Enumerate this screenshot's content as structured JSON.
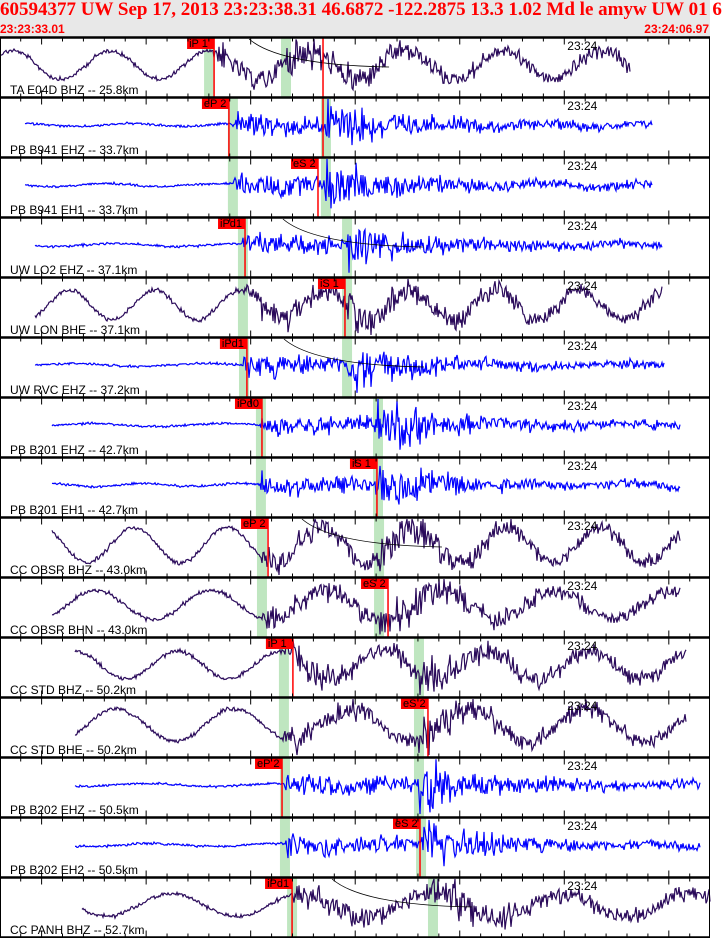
{
  "header": {
    "title": "60594377 UW Sep 17, 2013 23:23:38.31   46.6872 -122.2875 13.3 1.02 Md le amyw UW 01   6",
    "start_time": "23:23:33.01",
    "end_time": "23:24:06.97"
  },
  "time_axis": {
    "start_seconds_after_2323": 33.01,
    "end_seconds_after_2323": 66.97,
    "minute_label": "23:24",
    "minute_label_seconds": 60
  },
  "colors": {
    "broadband": "#2a0a5a",
    "short_period": "#0000ff",
    "pick": "#ff0000",
    "predicted": "#bfe6c0",
    "header_bg": "#e8e8e8"
  },
  "traces": [
    {
      "label": "TA E04D BHZ -- 25.8km",
      "type": "broadband",
      "picks": [
        {
          "label": "iP 1",
          "time": 43.25
        },
        {
          "label": "",
          "time": 48.46
        }
      ],
      "pred_p": 43.01,
      "pred_s": 46.69,
      "coda": true
    },
    {
      "label": "PB B941 EHZ -- 33.7km",
      "type": "short_period",
      "picks": [
        {
          "label": "eP 2",
          "time": 43.96
        },
        {
          "label": "",
          "time": 48.46
        }
      ],
      "pred_p": 44.15,
      "pred_s": 48.6
    },
    {
      "label": "PB B941 EH1 -- 33.7km",
      "type": "short_period",
      "picks": [
        {
          "label": "eS 2",
          "time": 48.22
        }
      ],
      "pred_p": 44.15,
      "pred_s": 48.6
    },
    {
      "label": "UW LO2 EHZ -- 37.1km",
      "type": "short_period",
      "picks": [
        {
          "label": "iPd1",
          "time": 44.73
        }
      ],
      "pred_p": 44.63,
      "pred_s": 49.61,
      "coda": true
    },
    {
      "label": "UW LON BHE -- 37.1km",
      "type": "broadband",
      "picks": [
        {
          "label": "iS 1",
          "time": 49.51
        }
      ],
      "pred_p": 44.63,
      "pred_s": 49.61
    },
    {
      "label": "UW RVC EHZ -- 37.2km",
      "type": "short_period",
      "picks": [
        {
          "label": "iPd1",
          "time": 44.82
        }
      ],
      "pred_p": 44.68,
      "pred_s": 49.61,
      "coda": true
    },
    {
      "label": "PB B201 EHZ -- 42.7km",
      "type": "short_period",
      "picks": [
        {
          "label": "iPd0",
          "time": 45.54
        }
      ],
      "pred_p": 45.49,
      "pred_s": 51.09
    },
    {
      "label": "PB B201 EH1 -- 42.7km",
      "type": "short_period",
      "picks": [
        {
          "label": "iS 1",
          "time": 51.04
        }
      ],
      "pred_p": 45.49,
      "pred_s": 51.09
    },
    {
      "label": "CC OBSR BHZ -- 43.0km",
      "type": "broadband",
      "picks": [
        {
          "label": "eP 2",
          "time": 45.83
        }
      ],
      "pred_p": 45.54,
      "pred_s": 51.14,
      "coda": true
    },
    {
      "label": "CC OBSR BHN -- 43.0km",
      "type": "broadband",
      "picks": [
        {
          "label": "eS 2",
          "time": 51.57
        }
      ],
      "pred_p": 45.54,
      "pred_s": 51.14
    },
    {
      "label": "CC STD BHZ -- 50.2km",
      "type": "broadband",
      "picks": [
        {
          "label": "iP 1",
          "time": 47.02
        }
      ],
      "pred_p": 46.59,
      "pred_s": 53.05
    },
    {
      "label": "CC STD BHE -- 50.2km",
      "type": "broadband",
      "picks": [
        {
          "label": "eS 2",
          "time": 53.48
        }
      ],
      "pred_p": 46.59,
      "pred_s": 53.05
    },
    {
      "label": "PB B202 EHZ -- 50.5km",
      "type": "short_period",
      "picks": [
        {
          "label": "eP 2",
          "time": 46.5
        }
      ],
      "pred_p": 46.64,
      "pred_s": 53.05
    },
    {
      "label": "PB B202 EH2 -- 50.5km",
      "type": "short_period",
      "picks": [
        {
          "label": "eS 2",
          "time": 53.1
        }
      ],
      "pred_p": 46.64,
      "pred_s": 53.15
    },
    {
      "label": "CC PANH BHZ -- 52.7km",
      "type": "broadband",
      "picks": [
        {
          "label": "iPd1",
          "time": 46.98
        }
      ],
      "pred_p": 46.98,
      "pred_s": 53.72,
      "coda": true
    }
  ]
}
